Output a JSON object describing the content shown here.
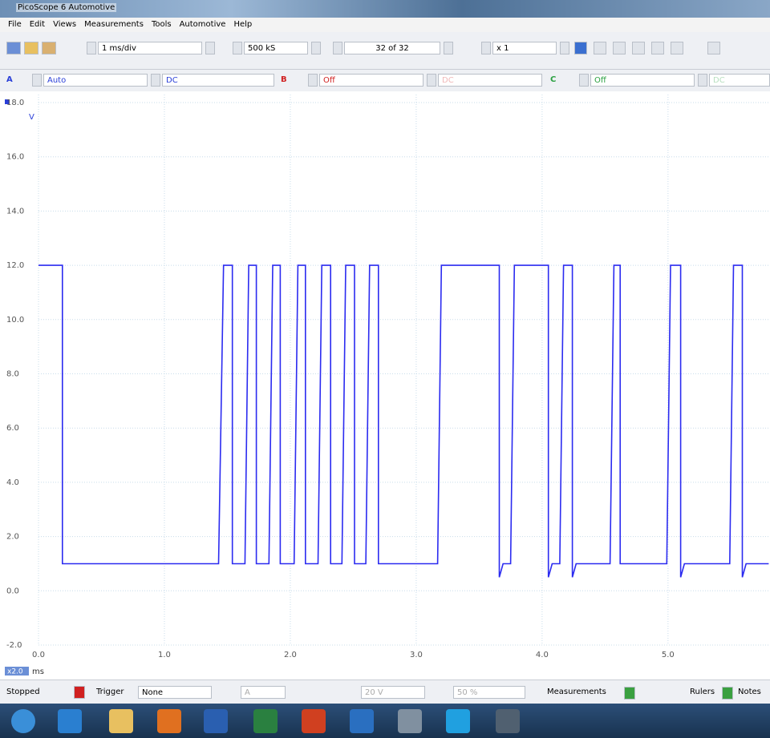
{
  "window": {
    "title": "PicoScope 6 Automotive"
  },
  "menu": [
    "File",
    "Edit",
    "Views",
    "Measurements",
    "Tools",
    "Automotive",
    "Help"
  ],
  "toolbar": {
    "timebase": "1 ms/div",
    "samples": "500 kS",
    "buffer": "32 of 32",
    "zoom": "x 1"
  },
  "channels": [
    {
      "name": "A",
      "range": "Auto",
      "coupling": "DC"
    },
    {
      "name": "B",
      "range": "Off",
      "coupling": "DC"
    },
    {
      "name": "C",
      "range": "Off",
      "coupling": "DC"
    }
  ],
  "status": {
    "state": "Stopped",
    "trigger_label": "Trigger",
    "trigger_mode": "None",
    "trigger_source": "A",
    "threshold": "20 V",
    "pre_trigger": "50 %",
    "measurements": "Measurements",
    "rulers": "Rulers",
    "notes": "Notes"
  },
  "chart_data": {
    "type": "line",
    "x_label": "ms",
    "y_label": "V",
    "x_scale_label": "x2.0",
    "color": "#2b2bf0",
    "grid": true,
    "x": [
      0,
      0.19,
      0.19,
      1.43,
      1.47,
      1.54,
      1.54,
      1.64,
      1.67,
      1.73,
      1.73,
      1.83,
      1.86,
      1.92,
      1.92,
      2.03,
      2.06,
      2.12,
      2.12,
      2.22,
      2.25,
      2.32,
      2.32,
      2.41,
      2.44,
      2.51,
      2.51,
      2.6,
      2.63,
      2.7,
      2.7,
      3.17,
      3.2,
      3.66,
      3.66,
      3.69,
      3.75,
      3.78,
      4.05,
      4.05,
      4.08,
      4.14,
      4.17,
      4.24,
      4.24,
      4.27,
      4.54,
      4.57,
      4.62,
      4.62,
      4.99,
      5.02,
      5.1,
      5.1,
      5.13,
      5.49,
      5.52,
      5.59,
      5.59,
      5.62,
      5.8
    ],
    "values": [
      12,
      12,
      1,
      1,
      12,
      12,
      1,
      1,
      12,
      12,
      1,
      1,
      12,
      12,
      1,
      1,
      12,
      12,
      1,
      1,
      12,
      12,
      1,
      1,
      12,
      12,
      1,
      1,
      12,
      12,
      1,
      1,
      12,
      12,
      0.5,
      1,
      1,
      12,
      12,
      0.5,
      1,
      1,
      12,
      12,
      0.5,
      1,
      1,
      12,
      12,
      1,
      1,
      12,
      12,
      0.5,
      1,
      1,
      12,
      12,
      0.5,
      1,
      1
    ],
    "xlim": [
      0,
      5.81
    ],
    "ylim": [
      -2,
      18
    ],
    "xticks": [
      {
        "value": 0,
        "label": "0.0"
      },
      {
        "value": 1,
        "label": "1.0"
      },
      {
        "value": 2,
        "label": "2.0"
      },
      {
        "value": 3,
        "label": "3.0"
      },
      {
        "value": 4,
        "label": "4.0"
      },
      {
        "value": 5,
        "label": "5.0"
      }
    ],
    "yticks": [
      {
        "value": -2,
        "label": "-2.0"
      },
      {
        "value": 0,
        "label": "0.0"
      },
      {
        "value": 2,
        "label": "2.0"
      },
      {
        "value": 4,
        "label": "4.0"
      },
      {
        "value": 6,
        "label": "6.0"
      },
      {
        "value": 8,
        "label": "8.0"
      },
      {
        "value": 10,
        "label": "10.0"
      },
      {
        "value": 12,
        "label": "12.0"
      },
      {
        "value": 14,
        "label": "14.0"
      },
      {
        "value": 16,
        "label": "16.0"
      },
      {
        "value": 18,
        "label": "18.0"
      }
    ]
  }
}
